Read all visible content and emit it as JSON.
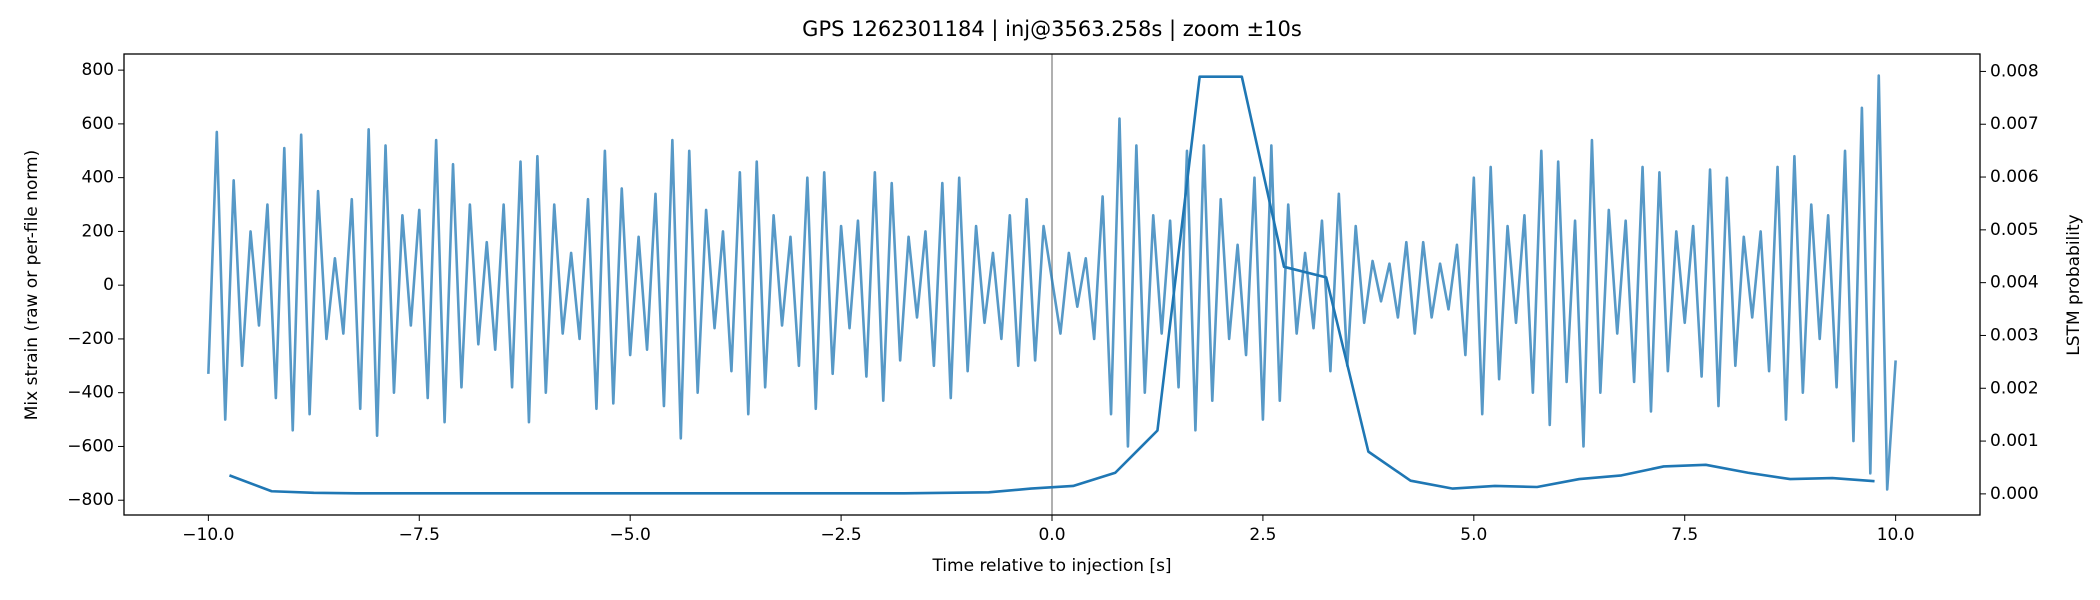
{
  "chart_data": {
    "type": "line",
    "title": "GPS 1262301184 | inj@3563.258s | zoom ±10s",
    "xlabel": "Time relative to injection [s]",
    "ylabel": "Mix strain (raw or per-file norm)",
    "y2label": "LSTM probability",
    "xlim": [
      -11,
      11
    ],
    "ylim": [
      -855,
      860
    ],
    "y2lim": [
      -0.0004,
      0.00833
    ],
    "xticks": [
      {
        "value": -10,
        "label": "−10.0"
      },
      {
        "value": -7.5,
        "label": "−7.5"
      },
      {
        "value": -5,
        "label": "−5.0"
      },
      {
        "value": -2.5,
        "label": "−2.5"
      },
      {
        "value": 0,
        "label": "0.0"
      },
      {
        "value": 2.5,
        "label": "2.5"
      },
      {
        "value": 5,
        "label": "5.0"
      },
      {
        "value": 7.5,
        "label": "7.5"
      },
      {
        "value": 10,
        "label": "10.0"
      }
    ],
    "yticks": [
      {
        "value": -800,
        "label": "−800"
      },
      {
        "value": -600,
        "label": "−600"
      },
      {
        "value": -400,
        "label": "−400"
      },
      {
        "value": -200,
        "label": "−200"
      },
      0,
      200,
      400,
      600,
      800
    ],
    "y2ticks": [
      {
        "value": 0,
        "label": "0.000"
      },
      {
        "value": 0.001,
        "label": "0.001"
      },
      {
        "value": 0.002,
        "label": "0.002"
      },
      {
        "value": 0.003,
        "label": "0.003"
      },
      {
        "value": 0.004,
        "label": "0.004"
      },
      {
        "value": 0.005,
        "label": "0.005"
      },
      {
        "value": 0.006,
        "label": "0.006"
      },
      {
        "value": 0.007,
        "label": "0.007"
      },
      {
        "value": 0.008,
        "label": "0.008"
      }
    ],
    "vline": {
      "x": 0,
      "color": "#b0b0b0"
    },
    "series": [
      {
        "color": "#1f77b4",
        "opacity": 0.75,
        "x": [
          -10,
          -9.9,
          -9.8,
          -9.7,
          -9.6,
          -9.5,
          -9.4,
          -9.3,
          -9.2,
          -9.1,
          -9,
          -8.9,
          -8.8,
          -8.7,
          -8.6,
          -8.5,
          -8.4,
          -8.3,
          -8.2,
          -8.1,
          -8,
          -7.9,
          -7.8,
          -7.7,
          -7.6,
          -7.5,
          -7.4,
          -7.3,
          -7.2,
          -7.1,
          -7,
          -6.9,
          -6.8,
          -6.7,
          -6.6,
          -6.5,
          -6.4,
          -6.3,
          -6.2,
          -6.1,
          -6,
          -5.9,
          -5.8,
          -5.7,
          -5.6,
          -5.5,
          -5.4,
          -5.3,
          -5.2,
          -5.1,
          -5,
          -4.9,
          -4.8,
          -4.7,
          -4.6,
          -4.5,
          -4.4,
          -4.3,
          -4.2,
          -4.1,
          -4,
          -3.9,
          -3.8,
          -3.7,
          -3.6,
          -3.5,
          -3.4,
          -3.3,
          -3.2,
          -3.1,
          -3,
          -2.9,
          -2.8,
          -2.7,
          -2.6,
          -2.5,
          -2.4,
          -2.3,
          -2.2,
          -2.1,
          -2,
          -1.9,
          -1.8,
          -1.7,
          -1.6,
          -1.5,
          -1.4,
          -1.3,
          -1.2,
          -1.1,
          -1,
          -0.9,
          -0.8,
          -0.7,
          -0.6,
          -0.5,
          -0.4,
          -0.3,
          -0.2,
          -0.1,
          0,
          0.1,
          0.2,
          0.3,
          0.4,
          0.5,
          0.6,
          0.7,
          0.8,
          0.9,
          1,
          1.1,
          1.2,
          1.3,
          1.4,
          1.5,
          1.6,
          1.7,
          1.8,
          1.9,
          2,
          2.1,
          2.2,
          2.3,
          2.4,
          2.5,
          2.6,
          2.7,
          2.8,
          2.9,
          3,
          3.1,
          3.2,
          3.3,
          3.4,
          3.5,
          3.6,
          3.7,
          3.8,
          3.9,
          4,
          4.1,
          4.2,
          4.3,
          4.4,
          4.5,
          4.6,
          4.7,
          4.8,
          4.9,
          5,
          5.1,
          5.2,
          5.3,
          5.4,
          5.5,
          5.6,
          5.7,
          5.8,
          5.9,
          6,
          6.1,
          6.2,
          6.3,
          6.4,
          6.5,
          6.6,
          6.7,
          6.8,
          6.9,
          7,
          7.1,
          7.2,
          7.3,
          7.4,
          7.5,
          7.6,
          7.7,
          7.8,
          7.9,
          8,
          8.1,
          8.2,
          8.3,
          8.4,
          8.5,
          8.6,
          8.7,
          8.8,
          8.9,
          9,
          9.1,
          9.2,
          9.3,
          9.4,
          9.5,
          9.6,
          9.7,
          9.8,
          9.9,
          10
        ],
        "values": [
          -330,
          570,
          -500,
          390,
          -300,
          200,
          -150,
          300,
          -420,
          510,
          -540,
          560,
          -480,
          350,
          -200,
          100,
          -180,
          320,
          -460,
          580,
          -560,
          520,
          -400,
          260,
          -150,
          280,
          -420,
          540,
          -510,
          450,
          -380,
          300,
          -220,
          160,
          -240,
          300,
          -380,
          460,
          -510,
          480,
          -400,
          300,
          -180,
          120,
          -200,
          320,
          -460,
          500,
          -440,
          360,
          -260,
          180,
          -240,
          340,
          -450,
          540,
          -570,
          500,
          -400,
          280,
          -160,
          200,
          -320,
          420,
          -480,
          460,
          -380,
          260,
          -150,
          180,
          -300,
          400,
          -460,
          420,
          -330,
          220,
          -160,
          240,
          -340,
          420,
          -430,
          380,
          -280,
          180,
          -120,
          200,
          -300,
          380,
          -420,
          400,
          -320,
          220,
          -140,
          120,
          -200,
          260,
          -300,
          320,
          -280,
          220,
          20,
          -180,
          120,
          -80,
          100,
          -200,
          330,
          -480,
          620,
          -600,
          520,
          -400,
          260,
          -180,
          240,
          -380,
          500,
          -540,
          520,
          -430,
          320,
          -200,
          150,
          -260,
          400,
          -500,
          520,
          -430,
          300,
          -180,
          120,
          -160,
          240,
          -320,
          340,
          -300,
          220,
          -140,
          90,
          -60,
          80,
          -120,
          160,
          -180,
          160,
          -120,
          80,
          -90,
          150,
          -260,
          400,
          -480,
          440,
          -350,
          220,
          -140,
          260,
          -400,
          500,
          -520,
          460,
          -360,
          240,
          -600,
          540,
          -400,
          280,
          -180,
          240,
          -360,
          440,
          -470,
          420,
          -320,
          200,
          -140,
          220,
          -340,
          430,
          -450,
          400,
          -300,
          180,
          -120,
          200,
          -320,
          440,
          -500,
          480,
          -400,
          300,
          -200,
          260,
          -380,
          500,
          -580,
          660,
          -700,
          780,
          -760,
          -280
        ]
      },
      {
        "color": "#1f77b4",
        "opacity": 1,
        "axis": "y2",
        "x": [
          -9.75,
          -9.25,
          -8.75,
          -8.25,
          -7.75,
          -7.25,
          -6.75,
          -6.25,
          -5.75,
          -5.25,
          -4.75,
          -4.25,
          -3.75,
          -3.25,
          -2.75,
          -2.25,
          -1.75,
          -1.25,
          -0.75,
          -0.25,
          0.25,
          0.75,
          1.25,
          1.75,
          2.25,
          2.75,
          3.25,
          3.75,
          4.25,
          4.75,
          5.25,
          5.75,
          6.25,
          6.75,
          7.25,
          7.75,
          8.25,
          8.75,
          9.25,
          9.75
        ],
        "values": [
          0.00035,
          5e-05,
          2e-05,
          1e-05,
          1e-05,
          1e-05,
          1e-05,
          1e-05,
          1e-05,
          1e-05,
          1e-05,
          1e-05,
          1e-05,
          1e-05,
          1e-05,
          1e-05,
          1e-05,
          2e-05,
          3e-05,
          0.0001,
          0.00015,
          0.0004,
          0.0012,
          0.0079,
          0.0079,
          0.0043,
          0.0041,
          0.0008,
          0.00025,
          0.0001,
          0.00015,
          0.00013,
          0.00028,
          0.00035,
          0.00052,
          0.00055,
          0.0004,
          0.00028,
          0.0003,
          0.00024
        ]
      }
    ]
  }
}
